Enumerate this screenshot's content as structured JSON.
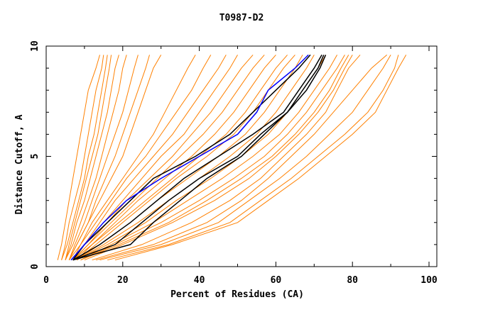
{
  "chart_data": {
    "type": "line",
    "title": "T0987-D2",
    "xlabel": "Percent of Residues (CA)",
    "ylabel": "Distance Cutoff, A",
    "xlim": [
      0,
      102
    ],
    "ylim": [
      0,
      10
    ],
    "x_ticks": [
      "0",
      "20",
      "40",
      "60",
      "80",
      "100"
    ],
    "x_tick_values": [
      0,
      20,
      40,
      60,
      80,
      100
    ],
    "y_ticks": [
      "0",
      "5",
      "10"
    ],
    "y_tick_values": [
      0,
      5,
      10
    ],
    "grid": false,
    "cutoffs": [
      0.3,
      1,
      2,
      3,
      4,
      5,
      6,
      7,
      8,
      9,
      9.6
    ],
    "colors": {
      "other": "#ff8000",
      "highlight": "#0000ff",
      "reference": "#000000"
    },
    "series_other": [
      [
        3,
        4,
        5,
        6,
        7,
        8,
        9,
        10,
        11,
        13,
        14
      ],
      [
        4,
        5,
        6,
        7.5,
        9,
        10,
        11,
        12,
        13,
        14.5,
        15
      ],
      [
        4,
        5.5,
        7,
        8.5,
        10,
        11,
        12.5,
        13.5,
        14.5,
        15.5,
        16
      ],
      [
        5,
        6,
        7.5,
        9,
        10.5,
        12,
        13.5,
        14.5,
        15.5,
        16.5,
        17
      ],
      [
        5,
        6.5,
        8,
        10,
        11.5,
        13,
        14.5,
        16,
        17,
        18,
        19
      ],
      [
        5,
        7,
        9,
        11,
        13,
        14.5,
        16,
        17.5,
        19,
        20,
        21
      ],
      [
        6,
        7.5,
        10,
        12,
        14,
        16,
        18,
        20,
        21.5,
        23,
        24
      ],
      [
        6,
        8,
        11,
        13,
        15.5,
        18,
        20,
        22,
        24,
        26,
        27
      ],
      [
        6,
        8,
        11,
        14,
        17,
        20,
        22,
        24,
        26,
        28,
        30
      ],
      [
        6,
        9,
        12,
        16,
        20,
        24,
        28,
        31,
        34,
        37,
        39
      ],
      [
        7,
        9,
        13,
        17,
        21,
        26,
        30,
        34,
        38,
        41,
        43
      ],
      [
        7,
        10,
        14,
        18,
        23,
        28,
        33,
        37,
        41,
        45,
        47
      ],
      [
        7,
        10,
        15,
        20,
        25,
        30,
        36,
        40,
        44,
        48,
        50
      ],
      [
        7,
        11,
        16,
        21,
        27,
        33,
        38,
        43,
        47,
        51,
        54
      ],
      [
        7,
        11,
        17,
        23,
        29,
        35,
        41,
        46,
        50,
        54,
        57
      ],
      [
        7,
        12,
        18,
        24,
        31,
        38,
        44,
        49,
        53,
        57,
        60
      ],
      [
        8,
        12,
        19,
        26,
        33,
        40,
        47,
        52,
        56,
        60,
        63
      ],
      [
        8,
        13,
        20,
        27,
        34,
        42,
        49,
        54,
        58,
        62,
        65
      ],
      [
        8,
        14,
        22,
        29,
        37,
        45,
        52,
        57,
        61,
        65,
        67
      ],
      [
        8,
        15,
        24,
        32,
        40,
        48,
        55,
        60,
        64,
        68,
        70
      ],
      [
        8,
        16,
        26,
        34,
        43,
        51,
        58,
        63,
        67,
        71,
        73
      ],
      [
        9,
        17,
        28,
        37,
        46,
        54,
        61,
        66,
        70,
        74,
        76
      ],
      [
        9,
        18,
        30,
        40,
        49,
        57,
        63,
        68,
        72,
        76,
        78
      ],
      [
        9,
        19,
        32,
        42,
        51,
        59,
        65,
        70,
        74,
        77,
        79
      ],
      [
        10,
        20,
        33,
        44,
        53,
        60,
        66,
        71,
        75,
        78,
        80
      ],
      [
        12,
        25,
        38,
        48,
        56,
        62,
        68,
        73,
        76,
        79,
        82
      ],
      [
        13,
        28,
        42,
        51,
        58,
        64,
        70,
        75,
        80,
        85,
        89
      ],
      [
        14,
        30,
        45,
        53,
        61,
        68,
        74,
        80,
        84,
        88,
        90
      ],
      [
        16,
        32,
        48,
        56,
        64,
        71,
        78,
        84,
        88,
        91,
        92
      ],
      [
        18,
        33,
        50,
        58,
        66,
        73,
        80,
        86,
        89,
        92,
        94
      ]
    ],
    "series_reference": [
      [
        7,
        10,
        16,
        22,
        28,
        39,
        48,
        54,
        60,
        66,
        69
      ],
      [
        7,
        14,
        22,
        29,
        36,
        45,
        54,
        62,
        66,
        70,
        72
      ],
      [
        7,
        18,
        25,
        32,
        40,
        50,
        56,
        63,
        67,
        71,
        72.5
      ],
      [
        7,
        22,
        28,
        35,
        42,
        51,
        57,
        63,
        68,
        71.5,
        73
      ]
    ],
    "series_highlight": [
      6.5,
      10,
      15,
      21,
      30,
      40,
      50,
      55,
      58,
      65,
      68.5
    ]
  }
}
